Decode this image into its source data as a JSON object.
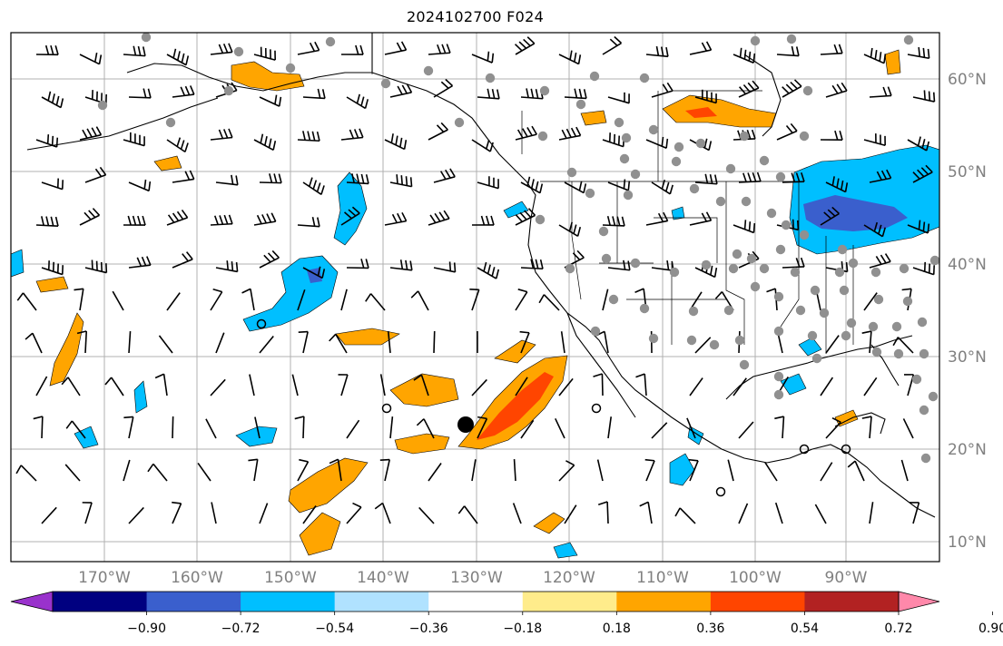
{
  "title": "2024102700 F024",
  "map": {
    "lon_labels": [
      "170°W",
      "160°W",
      "150°W",
      "140°W",
      "130°W",
      "120°W",
      "110°W",
      "100°W",
      "90°W"
    ],
    "lat_labels": [
      "60°N",
      "50°N",
      "40°N",
      "30°N",
      "20°N",
      "10°N"
    ],
    "gridline_color": "#b0b0b0",
    "coastline_color": "#000000",
    "station_marker_color": "#909090",
    "storm_marker_color": "#000000"
  },
  "colorbar": {
    "tick_labels": [
      "−0.90",
      "−0.72",
      "−0.54",
      "−0.36",
      "−0.18",
      "0.18",
      "0.36",
      "0.54",
      "0.72",
      "0.90"
    ],
    "colors": [
      "#9932cc",
      "#000080",
      "#3a5fcd",
      "#00bfff",
      "#b0e2ff",
      "#ffffff",
      "#ffec8b",
      "#ffa500",
      "#ff4500",
      "#b22222",
      "#ff88aa"
    ]
  }
}
